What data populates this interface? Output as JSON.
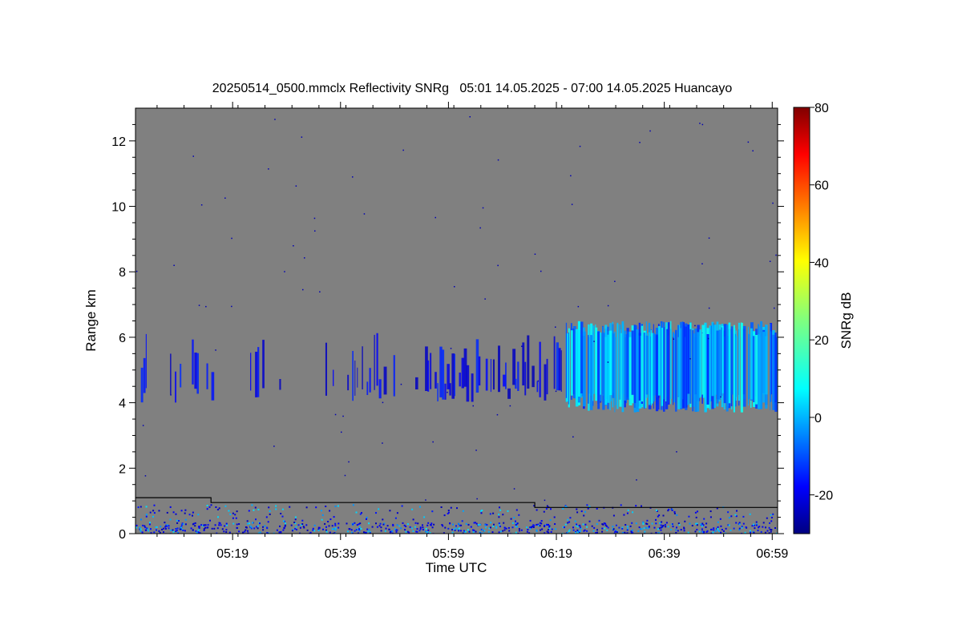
{
  "chart_data": {
    "type": "heatmap",
    "title": "20250514_0500.mmclx Reflectivity SNRg   05:01 14.05.2025 - 07:00 14.05.2025 Huancayo",
    "xlabel": "Time UTC",
    "ylabel": "Range km",
    "colorbar_label": "SNRg dB",
    "x_ticks": [
      {
        "label": "05:19",
        "minutes": 19
      },
      {
        "label": "05:39",
        "minutes": 39
      },
      {
        "label": "05:59",
        "minutes": 59
      },
      {
        "label": "06:19",
        "minutes": 79
      },
      {
        "label": "06:39",
        "minutes": 99
      },
      {
        "label": "06:59",
        "minutes": 119
      }
    ],
    "x_range_minutes": [
      1,
      120
    ],
    "y_ticks": [
      0,
      2,
      4,
      6,
      8,
      10,
      12
    ],
    "ylim": [
      0,
      13
    ],
    "colorbar_ticks": [
      -20,
      0,
      20,
      40,
      60,
      80
    ],
    "clim": [
      -30,
      80
    ],
    "colormap": "jet",
    "background_color": "#808080",
    "cloud_layer": {
      "base_km": 4.0,
      "top_km": 6.5,
      "snr_db_range": [
        -25,
        10
      ],
      "start_minutes": 2,
      "intensifies_after_minutes": 80
    },
    "surface_clutter": {
      "top_km": 0.9
    },
    "baseline_line_km": [
      {
        "start_minutes": 1,
        "end_minutes": 15,
        "km": 1.1
      },
      {
        "start_minutes": 15,
        "end_minutes": 75,
        "km": 0.95
      },
      {
        "start_minutes": 75,
        "end_minutes": 120,
        "km": 0.8
      }
    ]
  }
}
